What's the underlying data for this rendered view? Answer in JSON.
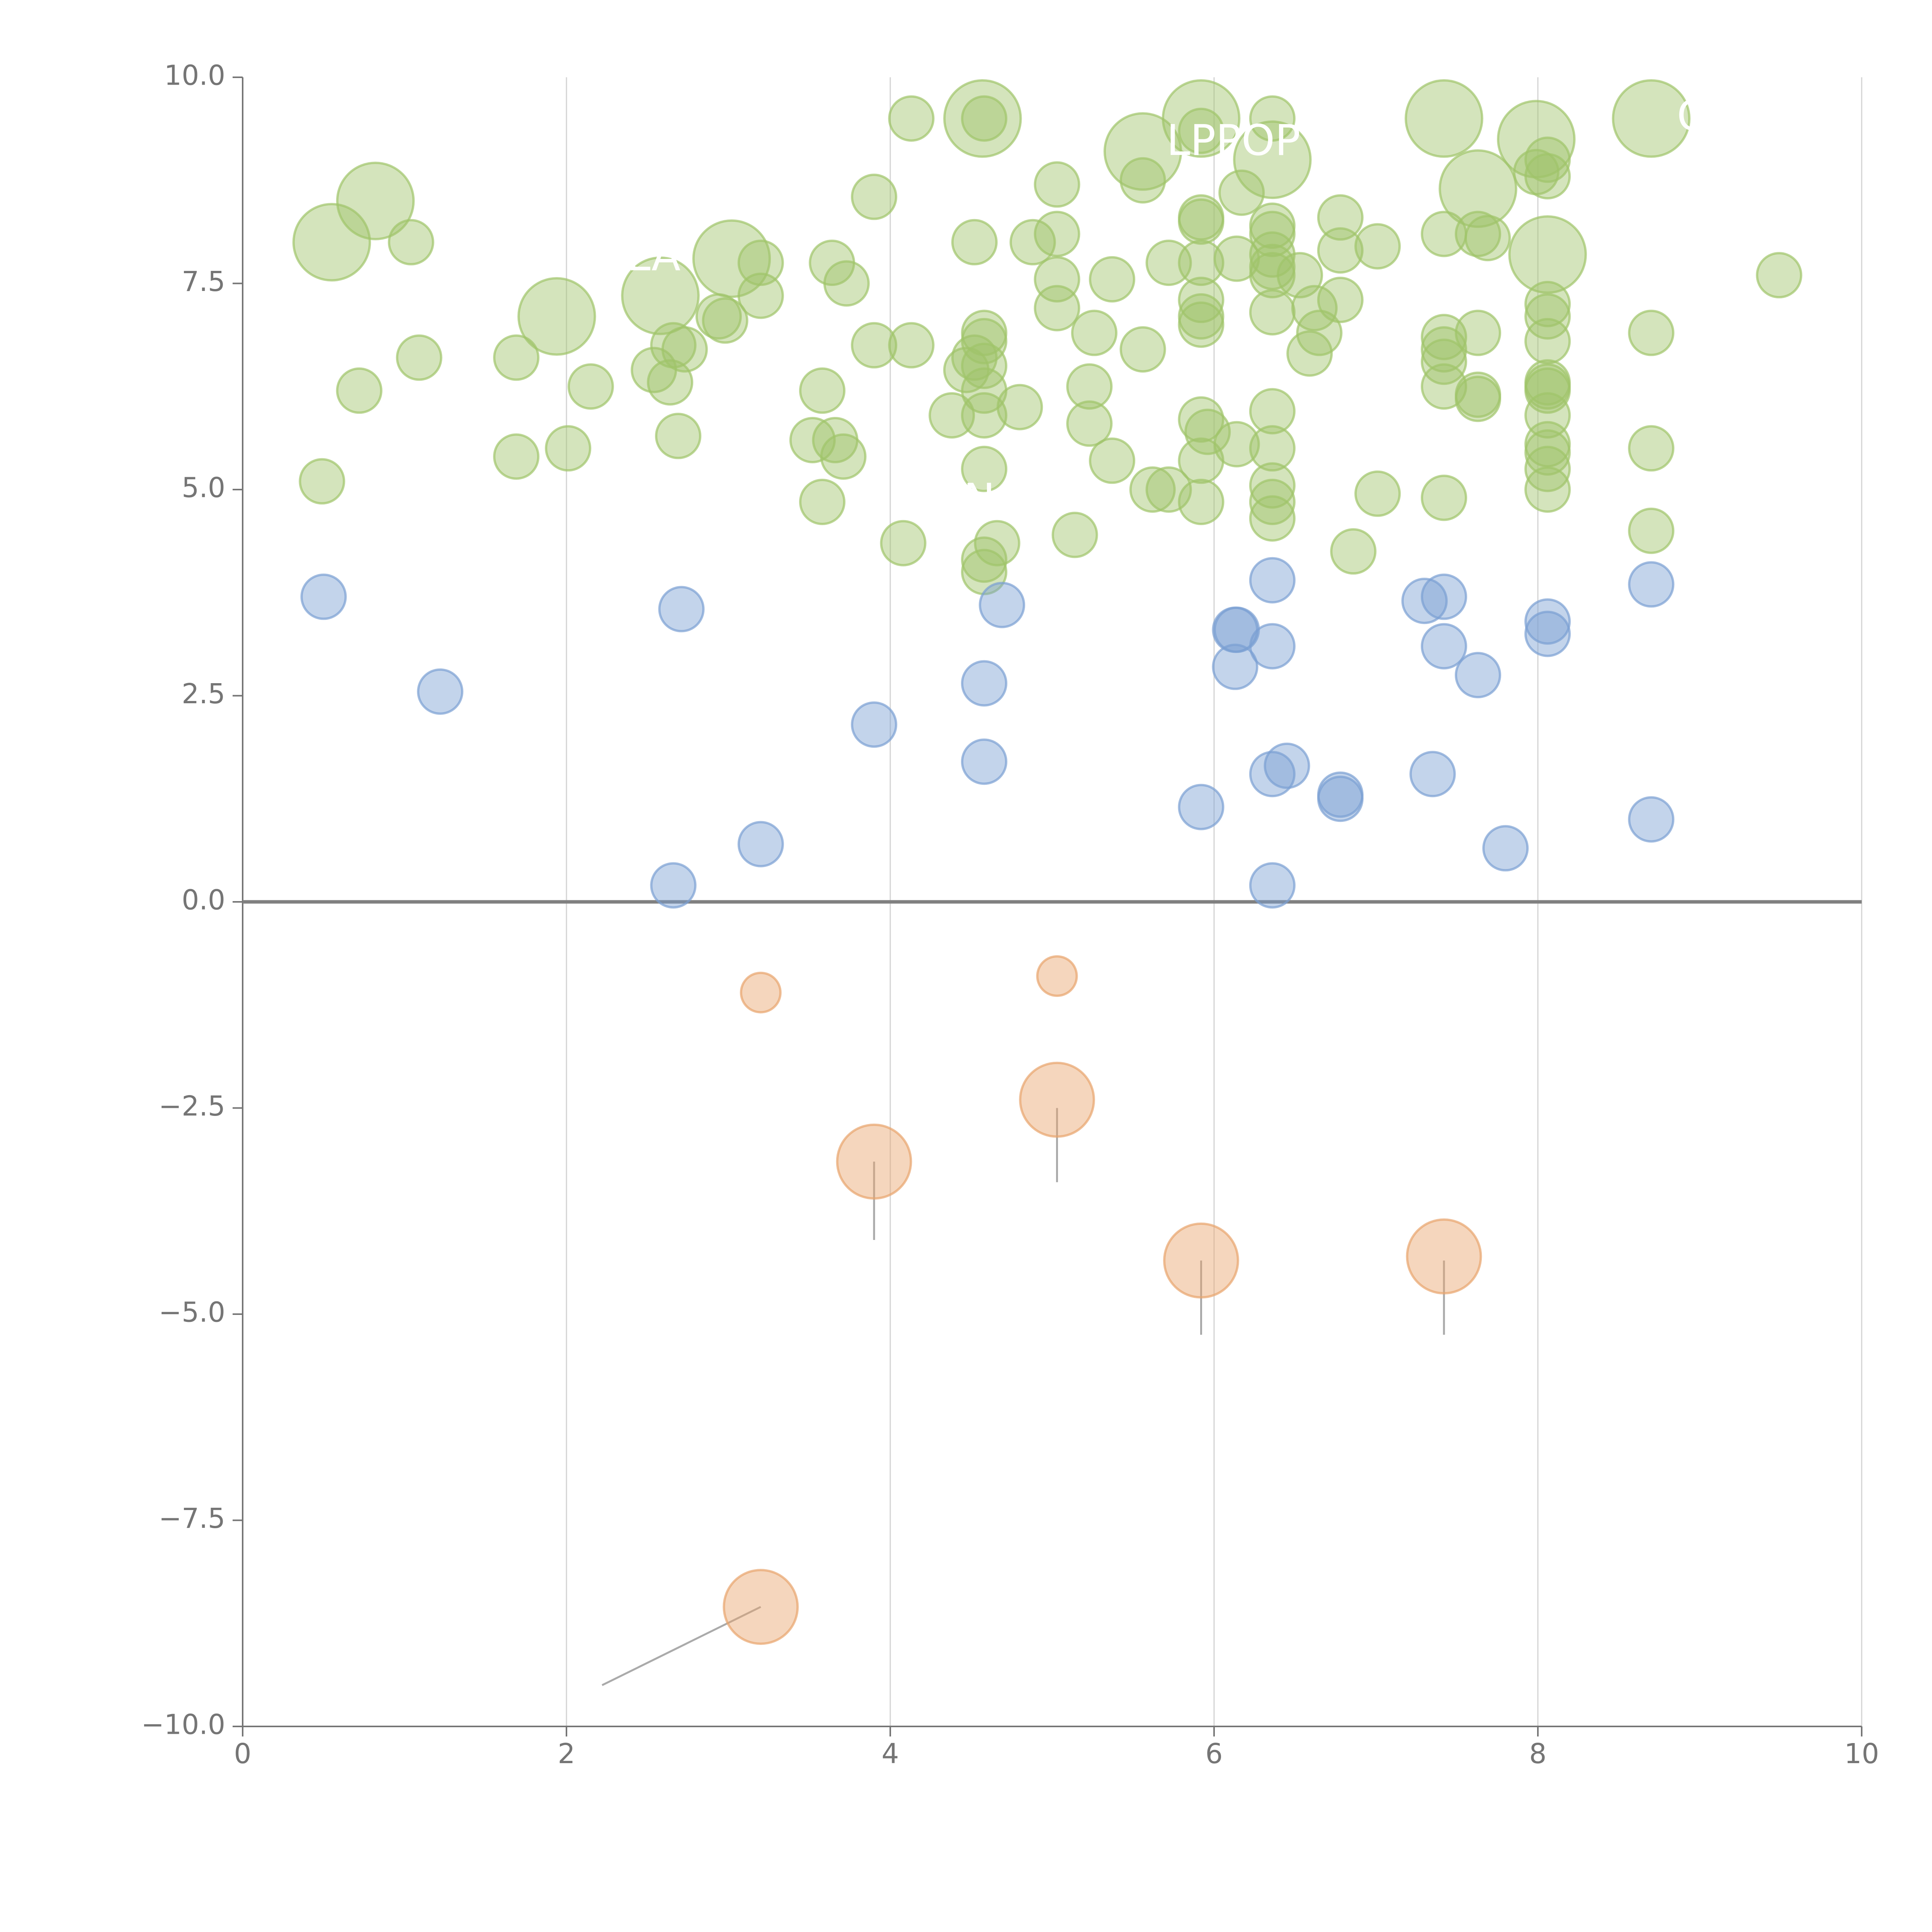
{
  "colors": {
    "green": "#9fc46a",
    "blue": "#7a9fd3",
    "orange": "#e8a46c",
    "axis": "#757575",
    "grid": "#d3d3d3",
    "zero_line": "#808080",
    "connector": "#aaaaaa"
  },
  "chart_data": {
    "type": "scatter",
    "title": "",
    "xlabel": "",
    "ylabel": "",
    "xlim": [
      0,
      10
    ],
    "ylim": [
      -10,
      10
    ],
    "x_ticks": [
      0,
      2,
      4,
      6,
      8,
      10
    ],
    "x_tick_labels": [
      "0",
      "2",
      "4",
      "6",
      "8",
      "10"
    ],
    "y_ticks": [
      10,
      7.5,
      5,
      2.5,
      0,
      -2.5,
      -5,
      -7.5,
      -10
    ],
    "y_tick_labels": [
      "10.0",
      "7.5",
      "5.0",
      "2.5",
      "0.0",
      "−2.5",
      "−5.0",
      "−7.5",
      "−10.0"
    ],
    "grid_x": true,
    "grid_y": false,
    "zero_line": true,
    "series": [
      {
        "name": "green",
        "color_key": "green",
        "points": [
          {
            "x": 0.49,
            "y": 5.1,
            "s": 1
          },
          {
            "x": 0.55,
            "y": 8.0,
            "s": 3
          },
          {
            "x": 0.72,
            "y": 6.2,
            "s": 1
          },
          {
            "x": 0.82,
            "y": 8.5,
            "s": 3
          },
          {
            "x": 1.04,
            "y": 8.0,
            "s": 1
          },
          {
            "x": 1.09,
            "y": 6.6,
            "s": 1
          },
          {
            "x": 1.69,
            "y": 5.4,
            "s": 1
          },
          {
            "x": 1.69,
            "y": 6.6,
            "s": 1
          },
          {
            "x": 1.94,
            "y": 7.1,
            "s": 3
          },
          {
            "x": 2.01,
            "y": 5.5,
            "s": 1
          },
          {
            "x": 2.15,
            "y": 6.25,
            "s": 1
          },
          {
            "x": 2.54,
            "y": 6.45,
            "s": 1
          },
          {
            "x": 2.58,
            "y": 7.35,
            "s": 3
          },
          {
            "x": 2.64,
            "y": 6.3,
            "s": 1
          },
          {
            "x": 2.66,
            "y": 6.75,
            "s": 1
          },
          {
            "x": 2.69,
            "y": 5.65,
            "s": 1
          },
          {
            "x": 2.73,
            "y": 6.7,
            "s": 1
          },
          {
            "x": 2.94,
            "y": 7.1,
            "s": 1
          },
          {
            "x": 2.98,
            "y": 7.05,
            "s": 1
          },
          {
            "x": 3.02,
            "y": 7.8,
            "s": 3
          },
          {
            "x": 3.2,
            "y": 7.75,
            "s": 1
          },
          {
            "x": 3.2,
            "y": 7.35,
            "s": 1
          },
          {
            "x": 3.52,
            "y": 5.6,
            "s": 1
          },
          {
            "x": 3.58,
            "y": 6.2,
            "s": 1
          },
          {
            "x": 3.58,
            "y": 4.85,
            "s": 1
          },
          {
            "x": 3.64,
            "y": 7.75,
            "s": 1
          },
          {
            "x": 3.66,
            "y": 5.6,
            "s": 1
          },
          {
            "x": 3.71,
            "y": 5.4,
            "s": 1
          },
          {
            "x": 3.73,
            "y": 7.5,
            "s": 1
          },
          {
            "x": 3.9,
            "y": 8.55,
            "s": 1
          },
          {
            "x": 3.9,
            "y": 6.75,
            "s": 1
          },
          {
            "x": 4.08,
            "y": 4.35,
            "s": 1
          },
          {
            "x": 4.13,
            "y": 6.75,
            "s": 1
          },
          {
            "x": 4.13,
            "y": 9.5,
            "s": 1
          },
          {
            "x": 4.38,
            "y": 5.9,
            "s": 1
          },
          {
            "x": 4.47,
            "y": 6.45,
            "s": 1
          },
          {
            "x": 4.52,
            "y": 8.0,
            "s": 1
          },
          {
            "x": 4.52,
            "y": 6.6,
            "s": 1
          },
          {
            "x": 4.57,
            "y": 9.5,
            "s": 3
          },
          {
            "x": 4.58,
            "y": 9.5,
            "s": 1
          },
          {
            "x": 4.58,
            "y": 6.9,
            "s": 1
          },
          {
            "x": 4.58,
            "y": 6.8,
            "s": 1
          },
          {
            "x": 4.58,
            "y": 6.5,
            "s": 1
          },
          {
            "x": 4.58,
            "y": 6.2,
            "s": 1
          },
          {
            "x": 4.58,
            "y": 5.9,
            "s": 1
          },
          {
            "x": 4.58,
            "y": 5.25,
            "s": 1
          },
          {
            "x": 4.58,
            "y": 4.15,
            "s": 1
          },
          {
            "x": 4.58,
            "y": 4.0,
            "s": 1
          },
          {
            "x": 4.66,
            "y": 4.35,
            "s": 1
          },
          {
            "x": 4.8,
            "y": 6.0,
            "s": 1
          },
          {
            "x": 4.88,
            "y": 8.0,
            "s": 1
          },
          {
            "x": 5.03,
            "y": 8.7,
            "s": 1
          },
          {
            "x": 5.03,
            "y": 8.1,
            "s": 1
          },
          {
            "x": 5.03,
            "y": 7.55,
            "s": 1
          },
          {
            "x": 5.03,
            "y": 7.2,
            "s": 1
          },
          {
            "x": 5.14,
            "y": 4.45,
            "s": 1
          },
          {
            "x": 5.23,
            "y": 6.25,
            "s": 1
          },
          {
            "x": 5.23,
            "y": 5.8,
            "s": 1
          },
          {
            "x": 5.26,
            "y": 6.9,
            "s": 1
          },
          {
            "x": 5.37,
            "y": 7.55,
            "s": 1
          },
          {
            "x": 5.37,
            "y": 5.35,
            "s": 1
          },
          {
            "x": 5.56,
            "y": 9.1,
            "s": 3
          },
          {
            "x": 5.56,
            "y": 8.75,
            "s": 1
          },
          {
            "x": 5.56,
            "y": 6.7,
            "s": 1
          },
          {
            "x": 5.62,
            "y": 5.0,
            "s": 1
          },
          {
            "x": 5.72,
            "y": 7.75,
            "s": 1
          },
          {
            "x": 5.72,
            "y": 5.0,
            "s": 1
          },
          {
            "x": 5.92,
            "y": 9.5,
            "s": 3
          },
          {
            "x": 5.92,
            "y": 9.35,
            "s": 1
          },
          {
            "x": 5.92,
            "y": 8.3,
            "s": 1
          },
          {
            "x": 5.92,
            "y": 8.25,
            "s": 1
          },
          {
            "x": 5.92,
            "y": 7.75,
            "s": 1
          },
          {
            "x": 5.92,
            "y": 7.3,
            "s": 1
          },
          {
            "x": 5.92,
            "y": 7.1,
            "s": 1
          },
          {
            "x": 5.92,
            "y": 7.0,
            "s": 1
          },
          {
            "x": 5.92,
            "y": 5.85,
            "s": 1
          },
          {
            "x": 5.92,
            "y": 5.35,
            "s": 1
          },
          {
            "x": 5.92,
            "y": 4.85,
            "s": 1
          },
          {
            "x": 5.96,
            "y": 5.7,
            "s": 1
          },
          {
            "x": 6.14,
            "y": 7.8,
            "s": 1
          },
          {
            "x": 6.14,
            "y": 5.55,
            "s": 1
          },
          {
            "x": 6.17,
            "y": 8.6,
            "s": 1
          },
          {
            "x": 6.36,
            "y": 9.0,
            "s": 3
          },
          {
            "x": 6.36,
            "y": 9.5,
            "s": 1
          },
          {
            "x": 6.36,
            "y": 8.2,
            "s": 1
          },
          {
            "x": 6.36,
            "y": 8.1,
            "s": 1
          },
          {
            "x": 6.36,
            "y": 7.85,
            "s": 1
          },
          {
            "x": 6.36,
            "y": 7.7,
            "s": 1
          },
          {
            "x": 6.36,
            "y": 7.6,
            "s": 1
          },
          {
            "x": 6.36,
            "y": 7.15,
            "s": 1
          },
          {
            "x": 6.36,
            "y": 5.95,
            "s": 1
          },
          {
            "x": 6.36,
            "y": 5.5,
            "s": 1
          },
          {
            "x": 6.36,
            "y": 5.05,
            "s": 1
          },
          {
            "x": 6.36,
            "y": 4.85,
            "s": 1
          },
          {
            "x": 6.36,
            "y": 4.65,
            "s": 1
          },
          {
            "x": 6.53,
            "y": 7.6,
            "s": 1
          },
          {
            "x": 6.59,
            "y": 6.65,
            "s": 1
          },
          {
            "x": 6.62,
            "y": 7.2,
            "s": 1
          },
          {
            "x": 6.65,
            "y": 6.9,
            "s": 1
          },
          {
            "x": 6.78,
            "y": 8.3,
            "s": 1
          },
          {
            "x": 6.78,
            "y": 7.9,
            "s": 1
          },
          {
            "x": 6.78,
            "y": 7.3,
            "s": 1
          },
          {
            "x": 6.86,
            "y": 4.25,
            "s": 1
          },
          {
            "x": 7.01,
            "y": 4.95,
            "s": 1
          },
          {
            "x": 7.01,
            "y": 7.95,
            "s": 1
          },
          {
            "x": 7.42,
            "y": 9.5,
            "s": 3
          },
          {
            "x": 7.42,
            "y": 8.1,
            "s": 1
          },
          {
            "x": 7.42,
            "y": 6.85,
            "s": 1
          },
          {
            "x": 7.42,
            "y": 6.7,
            "s": 1
          },
          {
            "x": 7.42,
            "y": 6.55,
            "s": 1
          },
          {
            "x": 7.42,
            "y": 6.25,
            "s": 1
          },
          {
            "x": 7.42,
            "y": 4.9,
            "s": 1
          },
          {
            "x": 7.63,
            "y": 8.65,
            "s": 3
          },
          {
            "x": 7.63,
            "y": 8.1,
            "s": 1
          },
          {
            "x": 7.63,
            "y": 6.9,
            "s": 1
          },
          {
            "x": 7.63,
            "y": 6.15,
            "s": 1
          },
          {
            "x": 7.63,
            "y": 6.1,
            "s": 1
          },
          {
            "x": 7.69,
            "y": 8.05,
            "s": 1
          },
          {
            "x": 7.99,
            "y": 9.25,
            "s": 3
          },
          {
            "x": 7.99,
            "y": 8.85,
            "s": 1
          },
          {
            "x": 8.06,
            "y": 7.85,
            "s": 3
          },
          {
            "x": 8.06,
            "y": 9.0,
            "s": 1
          },
          {
            "x": 8.06,
            "y": 8.8,
            "s": 1
          },
          {
            "x": 8.06,
            "y": 7.25,
            "s": 1
          },
          {
            "x": 8.06,
            "y": 7.1,
            "s": 1
          },
          {
            "x": 8.06,
            "y": 6.8,
            "s": 1
          },
          {
            "x": 8.06,
            "y": 6.3,
            "s": 1
          },
          {
            "x": 8.06,
            "y": 6.25,
            "s": 1
          },
          {
            "x": 8.06,
            "y": 6.2,
            "s": 1
          },
          {
            "x": 8.06,
            "y": 5.9,
            "s": 1
          },
          {
            "x": 8.06,
            "y": 5.55,
            "s": 1
          },
          {
            "x": 8.06,
            "y": 5.45,
            "s": 1
          },
          {
            "x": 8.06,
            "y": 5.25,
            "s": 1
          },
          {
            "x": 8.06,
            "y": 5.0,
            "s": 1
          },
          {
            "x": 8.7,
            "y": 9.5,
            "s": 3
          },
          {
            "x": 8.7,
            "y": 6.9,
            "s": 1
          },
          {
            "x": 8.7,
            "y": 5.5,
            "s": 1
          },
          {
            "x": 8.7,
            "y": 4.5,
            "s": 1
          },
          {
            "x": 9.49,
            "y": 7.6,
            "s": 1
          }
        ]
      },
      {
        "name": "blue",
        "color_key": "blue",
        "points": [
          {
            "x": 0.5,
            "y": 3.7,
            "s": 1
          },
          {
            "x": 1.22,
            "y": 2.55,
            "s": 1
          },
          {
            "x": 2.66,
            "y": 0.2,
            "s": 1
          },
          {
            "x": 2.71,
            "y": 3.55,
            "s": 1
          },
          {
            "x": 3.2,
            "y": 0.7,
            "s": 1
          },
          {
            "x": 3.9,
            "y": 2.15,
            "s": 1
          },
          {
            "x": 4.58,
            "y": 2.65,
            "s": 1
          },
          {
            "x": 4.58,
            "y": 1.7,
            "s": 1
          },
          {
            "x": 4.69,
            "y": 3.6,
            "s": 1
          },
          {
            "x": 5.92,
            "y": 1.15,
            "s": 1
          },
          {
            "x": 6.13,
            "y": 3.3,
            "s": 1
          },
          {
            "x": 6.14,
            "y": 3.3,
            "s": 1
          },
          {
            "x": 6.13,
            "y": 2.85,
            "s": 1
          },
          {
            "x": 6.36,
            "y": 3.9,
            "s": 1
          },
          {
            "x": 6.36,
            "y": 3.1,
            "s": 1
          },
          {
            "x": 6.36,
            "y": 1.55,
            "s": 1
          },
          {
            "x": 6.36,
            "y": 0.2,
            "s": 1
          },
          {
            "x": 6.45,
            "y": 1.65,
            "s": 1
          },
          {
            "x": 6.78,
            "y": 1.3,
            "s": 1
          },
          {
            "x": 6.78,
            "y": 1.25,
            "s": 1
          },
          {
            "x": 7.3,
            "y": 3.65,
            "s": 1
          },
          {
            "x": 7.35,
            "y": 1.55,
            "s": 1
          },
          {
            "x": 7.42,
            "y": 3.7,
            "s": 1
          },
          {
            "x": 7.42,
            "y": 3.1,
            "s": 1
          },
          {
            "x": 7.63,
            "y": 2.75,
            "s": 1
          },
          {
            "x": 7.8,
            "y": 0.65,
            "s": 1
          },
          {
            "x": 8.06,
            "y": 3.4,
            "s": 1
          },
          {
            "x": 8.06,
            "y": 3.25,
            "s": 1
          },
          {
            "x": 8.7,
            "y": 3.85,
            "s": 1
          },
          {
            "x": 8.7,
            "y": 1.0,
            "s": 1
          }
        ]
      },
      {
        "name": "orange",
        "color_key": "orange",
        "points": [
          {
            "x": 3.2,
            "y": -1.1,
            "s": 0.8
          },
          {
            "x": 5.03,
            "y": -0.9,
            "s": 0.8
          },
          {
            "x": 5.03,
            "y": -2.4,
            "s": 2.8
          },
          {
            "x": 3.9,
            "y": -3.15,
            "s": 2.8
          },
          {
            "x": 5.92,
            "y": -4.35,
            "s": 2.8
          },
          {
            "x": 7.42,
            "y": -4.3,
            "s": 2.8
          },
          {
            "x": 3.2,
            "y": -8.55,
            "s": 2.8
          }
        ]
      }
    ],
    "connectors": [
      {
        "x1": 3.9,
        "y1": -3.15,
        "x2": 3.9,
        "y2": -4.1
      },
      {
        "x1": 5.03,
        "y1": -2.5,
        "x2": 5.03,
        "y2": -3.4
      },
      {
        "x1": 5.92,
        "y1": -4.35,
        "x2": 5.92,
        "y2": -5.25
      },
      {
        "x1": 7.42,
        "y1": -4.35,
        "x2": 7.42,
        "y2": -5.25
      },
      {
        "x1": 3.2,
        "y1": -8.55,
        "x2": 2.22,
        "y2": -9.5
      }
    ],
    "annotations": [
      {
        "text": "LPPOP",
        "x": 6.12,
        "y": 9.2
      },
      {
        "text": "ILA",
        "x": 2.5,
        "y": 7.8
      },
      {
        "text": "N",
        "x": 4.55,
        "y": 4.85
      },
      {
        "text": "C",
        "x": 8.95,
        "y": 9.5
      }
    ]
  }
}
